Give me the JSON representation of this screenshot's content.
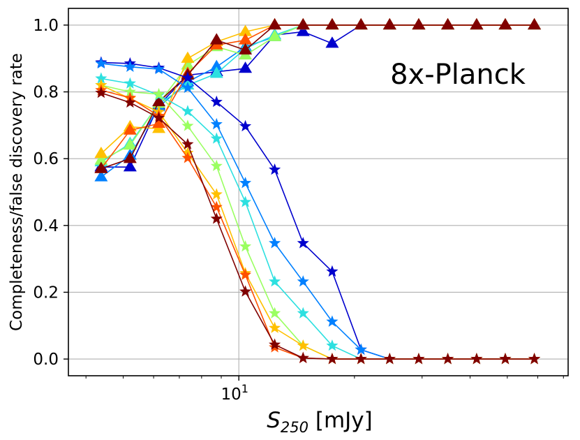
{
  "chart_data": {
    "type": "line",
    "annotation": "8x-Planck",
    "xlabel_symbol": "S",
    "xlabel_subscript": "250",
    "xlabel_unit": " [mJy]",
    "ylabel": "Completeness/false discovery rate",
    "xscale": "log",
    "xlim": [
      3.6,
      72
    ],
    "ylim": [
      -0.05,
      1.05
    ],
    "x_major_ticks": [
      {
        "value": 10,
        "base": "10",
        "exp": "1"
      }
    ],
    "yticks": [
      0.0,
      0.2,
      0.4,
      0.6,
      0.8,
      1.0
    ],
    "ytick_labels": [
      "0.0",
      "0.2",
      "0.4",
      "0.6",
      "0.8",
      "1.0"
    ],
    "grid": true,
    "legend": "none",
    "x": [
      4.38,
      5.21,
      6.19,
      7.36,
      8.75,
      10.4,
      12.4,
      14.7,
      17.5,
      20.8,
      24.7,
      29.4,
      35.0,
      41.6,
      49.4,
      58.8
    ],
    "series": [
      {
        "marker": "triangle",
        "color": "#0000cd",
        "values": [
          0.575,
          0.575,
          0.76,
          0.85,
          0.86,
          0.87,
          0.97,
          0.98,
          0.945,
          1.0,
          1.0,
          1.0,
          1.0,
          1.0,
          1.0,
          1.0
        ]
      },
      {
        "marker": "triangle",
        "color": "#0080ff",
        "values": [
          0.545,
          0.61,
          0.755,
          0.83,
          0.875,
          0.935,
          0.965,
          1.0,
          1.0,
          1.0,
          1.0,
          1.0,
          1.0,
          1.0,
          1.0,
          1.0
        ]
      },
      {
        "marker": "triangle",
        "color": "#2de0e0",
        "values": [
          0.59,
          0.645,
          0.765,
          0.82,
          0.855,
          0.93,
          0.97,
          1.0,
          1.0,
          1.0,
          1.0,
          1.0,
          1.0,
          1.0,
          1.0,
          1.0
        ]
      },
      {
        "marker": "triangle",
        "color": "#9aff60",
        "values": [
          0.595,
          0.64,
          0.765,
          0.88,
          0.935,
          0.91,
          0.965,
          1.0,
          1.0,
          1.0,
          1.0,
          1.0,
          1.0,
          1.0,
          1.0,
          1.0
        ]
      },
      {
        "marker": "triangle",
        "color": "#ffc000",
        "values": [
          0.615,
          0.695,
          0.69,
          0.9,
          0.95,
          0.98,
          1.0,
          1.0,
          1.0,
          1.0,
          1.0,
          1.0,
          1.0,
          1.0,
          1.0,
          1.0
        ]
      },
      {
        "marker": "triangle",
        "color": "#ff5000",
        "values": [
          0.57,
          0.685,
          0.705,
          0.855,
          0.94,
          0.955,
          1.0,
          1.0,
          1.0,
          1.0,
          1.0,
          1.0,
          1.0,
          1.0,
          1.0,
          1.0
        ]
      },
      {
        "marker": "triangle",
        "color": "#800000",
        "values": [
          0.57,
          0.6,
          0.77,
          0.85,
          0.955,
          0.925,
          1.0,
          1.0,
          1.0,
          1.0,
          1.0,
          1.0,
          1.0,
          1.0,
          1.0,
          1.0
        ]
      },
      {
        "marker": "star",
        "color": "#0000cd",
        "values": [
          0.888,
          0.885,
          0.872,
          0.842,
          0.77,
          0.697,
          0.567,
          0.347,
          0.262,
          0.028,
          0.0,
          0.0,
          0.0,
          0.0,
          0.0,
          0.0
        ]
      },
      {
        "marker": "star",
        "color": "#0080ff",
        "values": [
          0.885,
          0.875,
          0.868,
          0.812,
          0.703,
          0.527,
          0.347,
          0.232,
          0.112,
          0.028,
          0.0,
          0.0,
          0.0,
          0.0,
          0.0,
          0.0
        ]
      },
      {
        "marker": "star",
        "color": "#2de0e0",
        "values": [
          0.84,
          0.825,
          0.79,
          0.742,
          0.66,
          0.47,
          0.232,
          0.137,
          0.04,
          0.0,
          0.0,
          0.0,
          0.0,
          0.0,
          0.0,
          0.0
        ]
      },
      {
        "marker": "star",
        "color": "#9aff60",
        "values": [
          0.82,
          0.8,
          0.793,
          0.698,
          0.578,
          0.337,
          0.137,
          0.04,
          0.0,
          0.0,
          0.0,
          0.0,
          0.0,
          0.0,
          0.0,
          0.0
        ]
      },
      {
        "marker": "star",
        "color": "#ffc000",
        "values": [
          0.82,
          0.78,
          0.74,
          0.617,
          0.493,
          0.257,
          0.093,
          0.04,
          0.0,
          0.0,
          0.0,
          0.0,
          0.0,
          0.0,
          0.0,
          0.0
        ]
      },
      {
        "marker": "star",
        "color": "#ff5000",
        "values": [
          0.805,
          0.782,
          0.728,
          0.602,
          0.455,
          0.252,
          0.035,
          0.003,
          0.0,
          0.0,
          0.0,
          0.0,
          0.0,
          0.0,
          0.0,
          0.0
        ]
      },
      {
        "marker": "star",
        "color": "#800000",
        "values": [
          0.797,
          0.768,
          0.722,
          0.643,
          0.42,
          0.202,
          0.043,
          0.003,
          0.0,
          0.0,
          0.0,
          0.0,
          0.0,
          0.0,
          0.0,
          0.0
        ]
      }
    ]
  }
}
